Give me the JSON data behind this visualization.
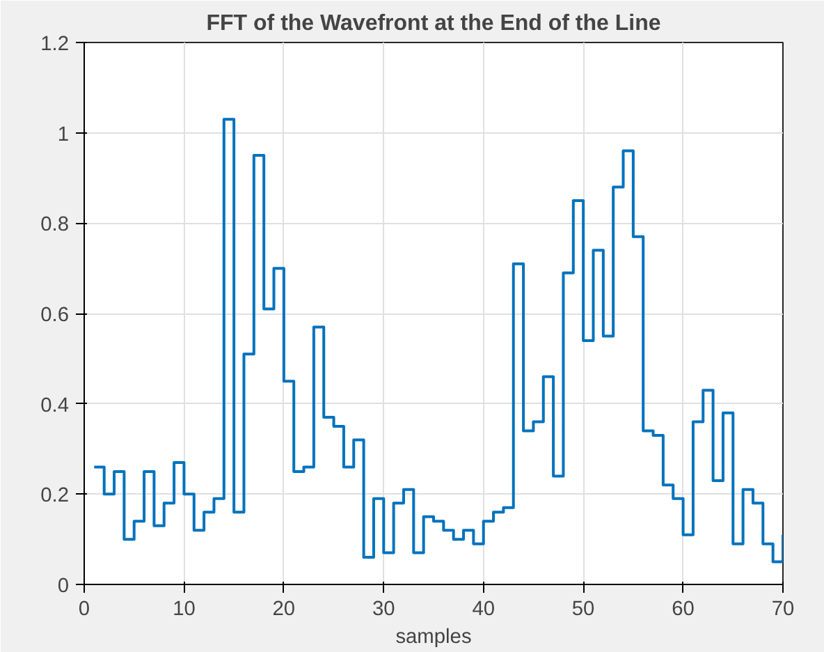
{
  "chart_data": {
    "type": "step",
    "title": "FFT of the Wavefront at the End of the Line",
    "xlabel": "samples",
    "x": [
      1,
      2,
      3,
      4,
      5,
      6,
      7,
      8,
      9,
      10,
      11,
      12,
      13,
      14,
      15,
      16,
      17,
      18,
      19,
      20,
      21,
      22,
      23,
      24,
      25,
      26,
      27,
      28,
      29,
      30,
      31,
      32,
      33,
      34,
      35,
      36,
      37,
      38,
      39,
      40,
      41,
      42,
      43,
      44,
      45,
      46,
      47,
      48,
      49,
      50,
      51,
      52,
      53,
      54,
      55,
      56,
      57,
      58,
      59,
      60,
      61,
      62,
      63,
      64,
      65,
      66,
      67,
      68,
      69,
      70
    ],
    "series": [
      {
        "color": "#0072bd",
        "values": [
          0.26,
          0.2,
          0.25,
          0.1,
          0.14,
          0.25,
          0.13,
          0.18,
          0.27,
          0.2,
          0.12,
          0.16,
          0.19,
          1.03,
          0.16,
          0.51,
          0.95,
          0.61,
          0.7,
          0.45,
          0.25,
          0.26,
          0.57,
          0.37,
          0.35,
          0.26,
          0.32,
          0.06,
          0.19,
          0.07,
          0.18,
          0.21,
          0.07,
          0.15,
          0.14,
          0.12,
          0.1,
          0.12,
          0.09,
          0.14,
          0.16,
          0.17,
          0.71,
          0.34,
          0.36,
          0.46,
          0.24,
          0.69,
          0.85,
          0.54,
          0.74,
          0.55,
          0.88,
          0.96,
          0.77,
          0.34,
          0.33,
          0.22,
          0.19,
          0.11,
          0.36,
          0.43,
          0.23,
          0.38,
          0.09,
          0.21,
          0.18,
          0.09,
          0.05,
          0.11
        ]
      }
    ],
    "xlim": [
      0,
      70
    ],
    "ylim": [
      0,
      1.2
    ],
    "xticks": [
      0,
      10,
      20,
      30,
      40,
      50,
      60,
      70
    ],
    "yticks": [
      0,
      0.2,
      0.4,
      0.6,
      0.8,
      1,
      1.2
    ],
    "grid": true,
    "marker": "none",
    "line_style": "solid"
  }
}
